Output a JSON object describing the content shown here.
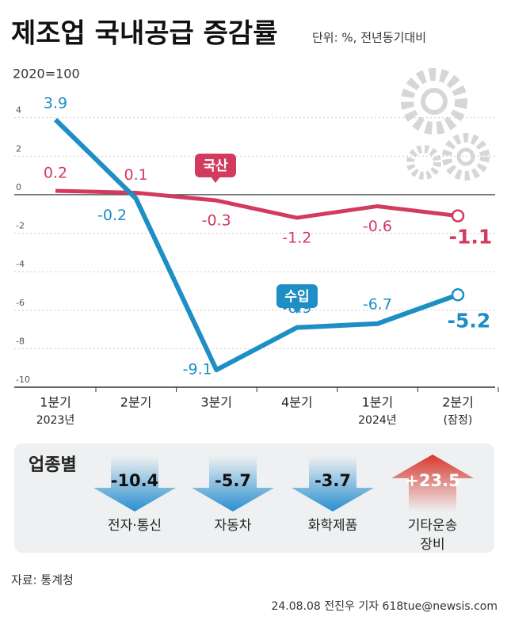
{
  "chart_data": {
    "type": "line",
    "title": "제조업 국내공급 증감률",
    "subtitle": "단위: %, 전년동기대비",
    "index_note": "2020=100",
    "categories": [
      "1분기",
      "2분기",
      "3분기",
      "4분기",
      "1분기",
      "2분기"
    ],
    "category_sublabels": [
      "2023년",
      null,
      null,
      null,
      "2024년",
      "(잠정)"
    ],
    "series": [
      {
        "name": "국산",
        "color": "#d23a5e",
        "values": [
          0.2,
          0.1,
          -0.3,
          -1.2,
          -0.6,
          -1.1
        ]
      },
      {
        "name": "수입",
        "color": "#1d8fc4",
        "values": [
          3.9,
          -0.2,
          -9.1,
          -6.9,
          -6.7,
          -5.2
        ]
      }
    ],
    "ylim": [
      -10,
      6
    ],
    "yticks": [
      4,
      2,
      0,
      -2,
      -4,
      -6,
      -8,
      -10
    ],
    "breakdown": {
      "title": "업종별",
      "categories": [
        [
          "전자·통신"
        ],
        [
          "자동차"
        ],
        [
          "화학제품"
        ],
        [
          "기타운송",
          "장비"
        ]
      ],
      "values": [
        -10.4,
        -5.7,
        -3.7,
        23.5
      ],
      "value_labels": [
        "-10.4",
        "-5.7",
        "-3.7",
        "+23.5"
      ]
    },
    "source": "자료: 통계청",
    "credit": "24.08.08 전진우 기자 618tue@newsis.com"
  }
}
